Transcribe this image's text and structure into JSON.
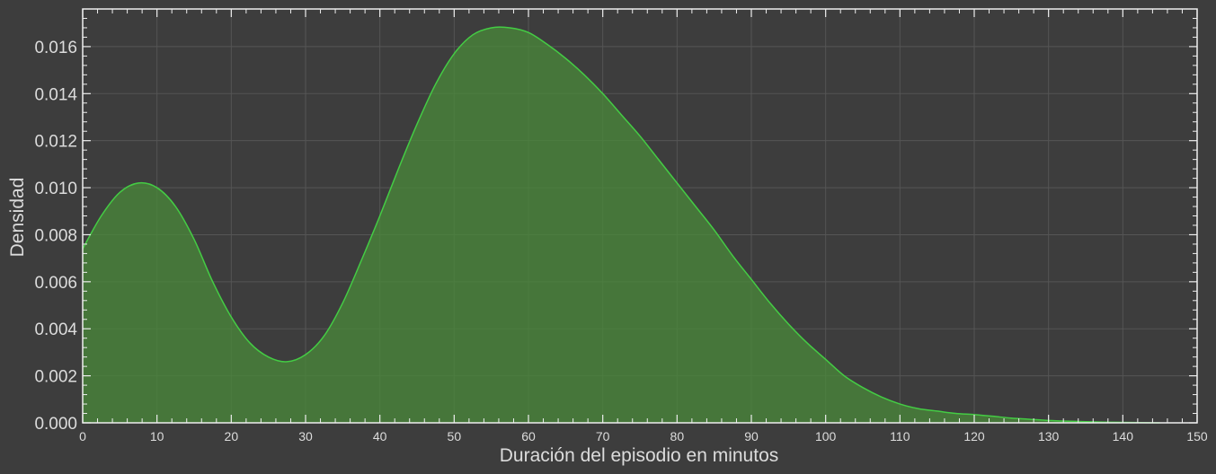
{
  "chart_data": {
    "type": "area",
    "title": "",
    "xlabel": "Duración del episodio en minutos",
    "ylabel": "Densidad",
    "xlim": [
      0,
      150
    ],
    "ylim": [
      0,
      0.0176
    ],
    "grid": true,
    "x_ticks": [
      "0",
      "10",
      "20",
      "30",
      "40",
      "50",
      "60",
      "70",
      "80",
      "90",
      "100",
      "110",
      "120",
      "130",
      "140",
      "150"
    ],
    "y_ticks": [
      "0.000",
      "0.002",
      "0.004",
      "0.006",
      "0.008",
      "0.010",
      "0.012",
      "0.014",
      "0.016"
    ],
    "series": [
      {
        "x": [
          0,
          2.5,
          5,
          7.5,
          10,
          12.5,
          15,
          17.5,
          20,
          22.5,
          25,
          27.5,
          30,
          32.5,
          35,
          37.5,
          40,
          42.5,
          45,
          47.5,
          50,
          52.5,
          55,
          57.5,
          60,
          62.5,
          65,
          67.5,
          70,
          72.5,
          75,
          77.5,
          80,
          82.5,
          85,
          87.5,
          90,
          92.5,
          95,
          97.5,
          100,
          102.5,
          105,
          107.5,
          110,
          112.5,
          115,
          117.5,
          120,
          122.5,
          125,
          127.5,
          130,
          132.5,
          135,
          137.5,
          140,
          142.5,
          145
        ],
        "y": [
          0.0074,
          0.0088,
          0.0098,
          0.0102,
          0.01,
          0.0092,
          0.0078,
          0.006,
          0.0045,
          0.0034,
          0.0028,
          0.0026,
          0.0029,
          0.0037,
          0.0051,
          0.0069,
          0.0088,
          0.0108,
          0.0127,
          0.0144,
          0.0157,
          0.0165,
          0.0168,
          0.0168,
          0.0166,
          0.0161,
          0.0155,
          0.0148,
          0.014,
          0.0131,
          0.0122,
          0.0112,
          0.0102,
          0.0092,
          0.0082,
          0.0071,
          0.0061,
          0.0051,
          0.0042,
          0.0034,
          0.0027,
          0.002,
          0.0015,
          0.0011,
          0.0008,
          0.0006,
          0.0005,
          0.0004,
          0.00035,
          0.00028,
          0.0002,
          0.00015,
          0.0001,
          7e-05,
          5e-05,
          3e-05,
          2e-05,
          1e-05,
          0.0
        ]
      }
    ],
    "colors": {
      "line": "#44cc44",
      "fill": "#4a8a3a",
      "background": "#3d3d3d",
      "grid": "#555555",
      "axis": "#eeeeee"
    }
  }
}
